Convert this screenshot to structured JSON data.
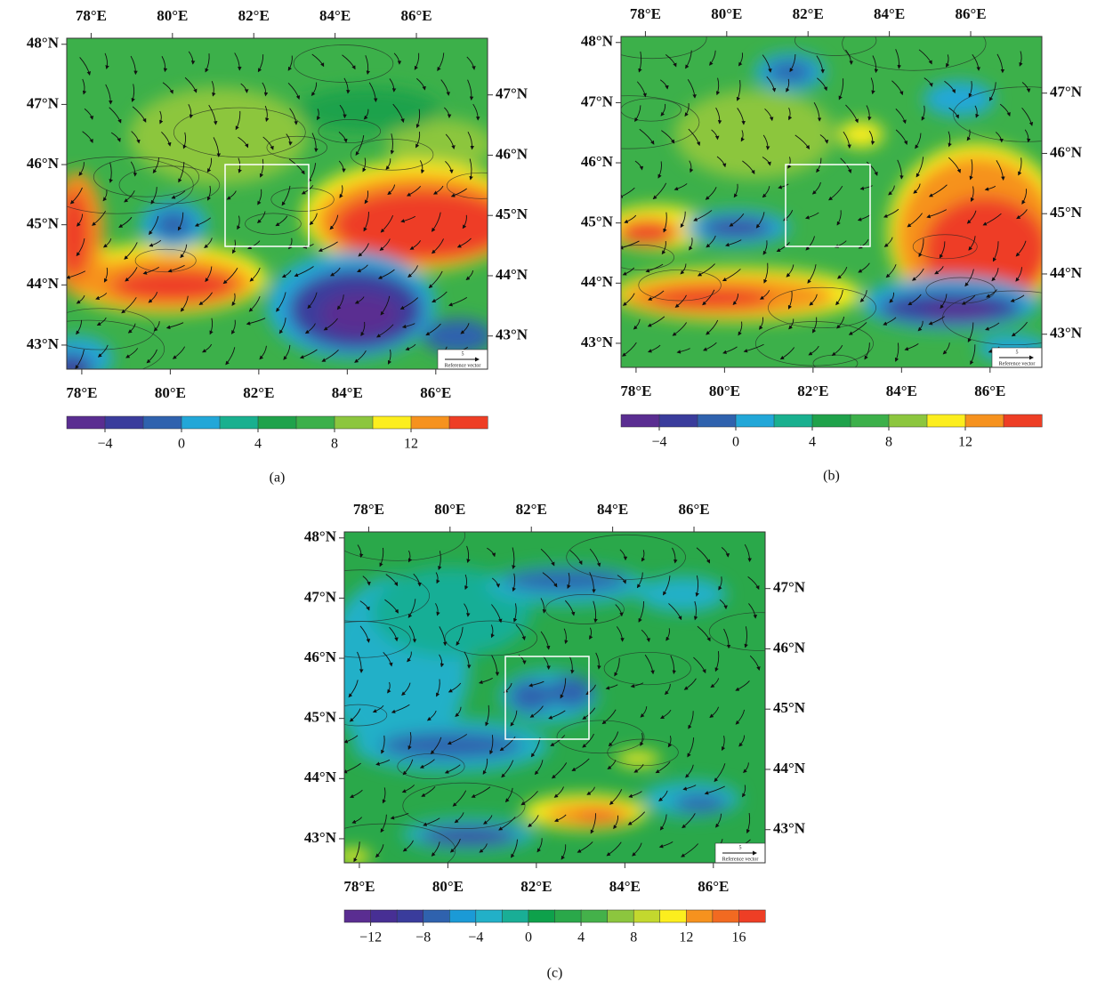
{
  "figure": {
    "axes": {
      "top_lon": {
        "lim": [
          77.4,
          87.75
        ],
        "ticks": [
          {
            "value": 78,
            "label": "78°E"
          },
          {
            "value": 80,
            "label": "80°E"
          },
          {
            "value": 82,
            "label": "82°E"
          },
          {
            "value": 84,
            "label": "84°E"
          },
          {
            "value": 86,
            "label": "86°E"
          }
        ]
      },
      "bottom_lon": {
        "lim": [
          77.66,
          87.17
        ],
        "ticks": [
          {
            "value": 78,
            "label": "78°E"
          },
          {
            "value": 80,
            "label": "80°E"
          },
          {
            "value": 82,
            "label": "82°E"
          },
          {
            "value": 84,
            "label": "84°E"
          },
          {
            "value": 86,
            "label": "86°E"
          }
        ]
      },
      "left_lat": {
        "lim": [
          42.6,
          48.1
        ],
        "ticks": [
          {
            "value": 48,
            "label": "48°N"
          },
          {
            "value": 47,
            "label": "47°N"
          },
          {
            "value": 46,
            "label": "46°N"
          },
          {
            "value": 45,
            "label": "45°N"
          },
          {
            "value": 44,
            "label": "44°N"
          },
          {
            "value": 43,
            "label": "43°N"
          }
        ]
      },
      "right_lat": {
        "lim": [
          42.45,
          47.94
        ],
        "ticks": [
          {
            "value": 47,
            "label": "47°N"
          },
          {
            "value": 46,
            "label": "46°N"
          },
          {
            "value": 45,
            "label": "45°N"
          },
          {
            "value": 44,
            "label": "44°N"
          },
          {
            "value": 43,
            "label": "43°N"
          }
        ]
      }
    },
    "reference_vector": {
      "value": 5,
      "label": "Reference vector"
    },
    "panels": [
      {
        "label": "(a)",
        "colorbar": {
          "lim": [
            -6,
            16
          ],
          "colors": [
            "#5a2d91",
            "#3a3c9c",
            "#2f62ae",
            "#22a7d8",
            "#19b08f",
            "#1fa24b",
            "#3cb04a",
            "#8cc63e",
            "#fcee1e",
            "#f6921e",
            "#ee3e25"
          ],
          "ticks": [
            {
              "value": -4,
              "label": "−4"
            },
            0,
            4,
            8,
            12
          ]
        }
      },
      {
        "label": "(b)",
        "colorbar": {
          "lim": [
            -6,
            16
          ],
          "colors": [
            "#5a2d91",
            "#3a3c9c",
            "#2f62ae",
            "#22a7d8",
            "#19b08f",
            "#1fa24b",
            "#3cb04a",
            "#8cc63e",
            "#fcee1e",
            "#f6921e",
            "#ee3e25"
          ],
          "ticks": [
            {
              "value": -4,
              "label": "−4"
            },
            0,
            4,
            8,
            12
          ]
        }
      },
      {
        "label": "(c)",
        "colorbar": {
          "lim": [
            -14,
            18
          ],
          "colors": [
            "#5a2d91",
            "#472f94",
            "#3a3c9c",
            "#2f62ae",
            "#1b9ad6",
            "#22b0c8",
            "#19ae96",
            "#0ea14b",
            "#2aa84a",
            "#44b14a",
            "#8cc63e",
            "#c3d82e",
            "#fcee1e",
            "#f6921e",
            "#f26a21",
            "#ee3e25"
          ],
          "ticks": [
            {
              "value": -12,
              "label": "−12"
            },
            {
              "value": -8,
              "label": "−8"
            },
            {
              "value": -4,
              "label": "−4"
            },
            0,
            4,
            8,
            12,
            16
          ]
        }
      }
    ]
  }
}
